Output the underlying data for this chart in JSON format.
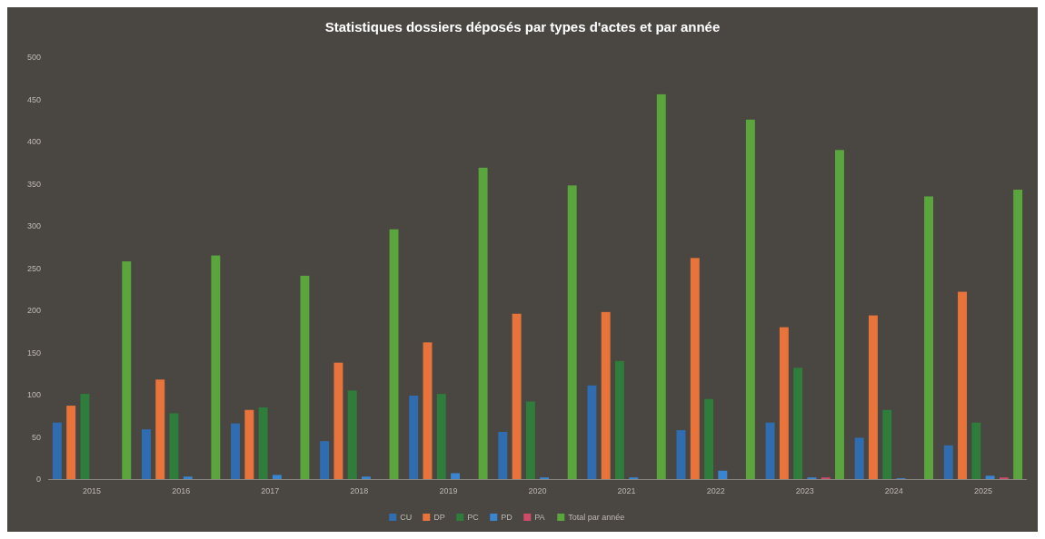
{
  "chart_data": {
    "type": "bar",
    "title": "Statistiques dossiers déposés par types d'actes et par année",
    "categories": [
      "2015",
      "2016",
      "2017",
      "2018",
      "2019",
      "2020",
      "2021",
      "2022",
      "2023",
      "2024",
      "2025"
    ],
    "series": [
      {
        "name": "CU",
        "color": "#2f6db0",
        "values": [
          67,
          59,
          66,
          45,
          99,
          56,
          111,
          58,
          67,
          49,
          40
        ]
      },
      {
        "name": "DP",
        "color": "#e8743b",
        "values": [
          87,
          118,
          82,
          138,
          162,
          196,
          198,
          262,
          180,
          194,
          222
        ]
      },
      {
        "name": "PC",
        "color": "#2e7d3a",
        "values": [
          101,
          78,
          85,
          105,
          101,
          92,
          140,
          95,
          132,
          82,
          67
        ]
      },
      {
        "name": "PD",
        "color": "#3a85d0",
        "values": [
          0,
          3,
          5,
          3,
          7,
          2,
          2,
          10,
          2,
          1,
          4
        ]
      },
      {
        "name": "PA",
        "color": "#d04a6a",
        "values": [
          0,
          0,
          0,
          0,
          0,
          0,
          0,
          0,
          2,
          0,
          2
        ]
      },
      {
        "name": "Total par année",
        "color": "#5aa63c",
        "values": [
          258,
          265,
          241,
          296,
          369,
          348,
          456,
          426,
          390,
          335,
          343
        ]
      }
    ],
    "ylim": [
      0,
      500
    ],
    "yticks": [
      0,
      50,
      100,
      150,
      200,
      250,
      300,
      350,
      400,
      450,
      500
    ],
    "legend": "bottom"
  }
}
